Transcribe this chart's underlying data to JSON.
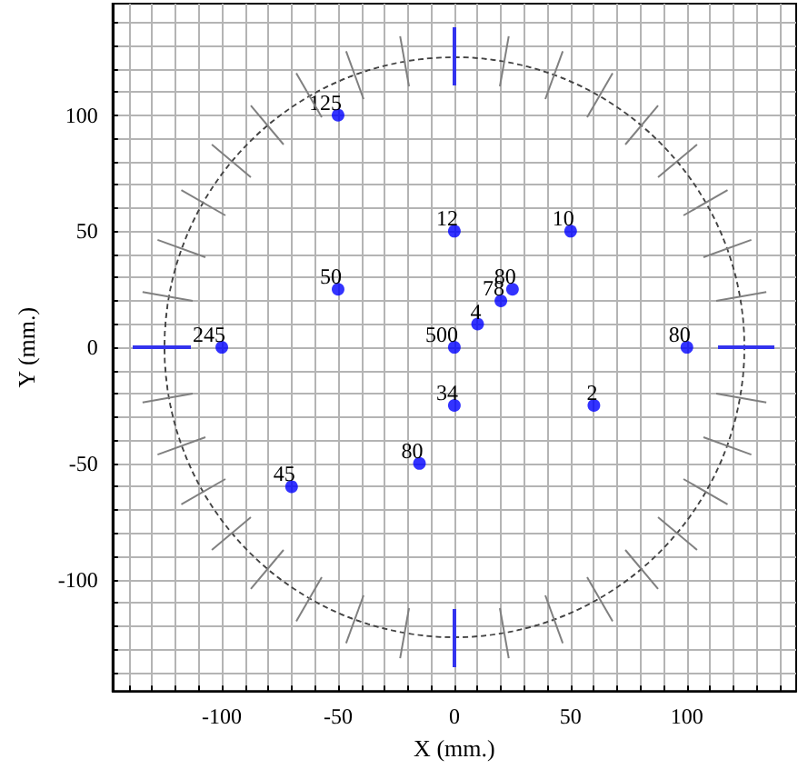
{
  "chart_data": {
    "type": "scatter",
    "xlabel": "X (mm.)",
    "ylabel": "Y (mm.)",
    "xlim": [
      -147,
      147
    ],
    "ylim": [
      -148,
      148
    ],
    "xticks": [
      {
        "value": -140,
        "label": null
      },
      {
        "value": -130,
        "label": null
      },
      {
        "value": -120,
        "label": null
      },
      {
        "value": -110,
        "label": null
      },
      -100,
      {
        "value": -90,
        "label": null
      },
      {
        "value": -80,
        "label": null
      },
      {
        "value": -70,
        "label": null
      },
      {
        "value": -60,
        "label": null
      },
      -50,
      {
        "value": -40,
        "label": null
      },
      {
        "value": -30,
        "label": null
      },
      {
        "value": -20,
        "label": null
      },
      {
        "value": -10,
        "label": null
      },
      0,
      {
        "value": 10,
        "label": null
      },
      {
        "value": 20,
        "label": null
      },
      {
        "value": 30,
        "label": null
      },
      {
        "value": 40,
        "label": null
      },
      50,
      {
        "value": 60,
        "label": null
      },
      {
        "value": 70,
        "label": null
      },
      {
        "value": 80,
        "label": null
      },
      {
        "value": 90,
        "label": null
      },
      100,
      {
        "value": 110,
        "label": null
      },
      {
        "value": 120,
        "label": null
      },
      {
        "value": 130,
        "label": null
      },
      {
        "value": 140,
        "label": null
      }
    ],
    "yticks": [
      {
        "value": -140,
        "label": null
      },
      {
        "value": -130,
        "label": null
      },
      {
        "value": -120,
        "label": null
      },
      {
        "value": -110,
        "label": null
      },
      -100,
      {
        "value": -90,
        "label": null
      },
      {
        "value": -80,
        "label": null
      },
      {
        "value": -70,
        "label": null
      },
      {
        "value": -60,
        "label": null
      },
      -50,
      {
        "value": -40,
        "label": null
      },
      {
        "value": -30,
        "label": null
      },
      {
        "value": -20,
        "label": null
      },
      {
        "value": -10,
        "label": null
      },
      0,
      {
        "value": 10,
        "label": null
      },
      {
        "value": 20,
        "label": null
      },
      {
        "value": 30,
        "label": null
      },
      {
        "value": 40,
        "label": null
      },
      50,
      {
        "value": 60,
        "label": null
      },
      {
        "value": 70,
        "label": null
      },
      {
        "value": 80,
        "label": null
      },
      {
        "value": 90,
        "label": null
      },
      100,
      {
        "value": 110,
        "label": null
      },
      {
        "value": 120,
        "label": null
      },
      {
        "value": 130,
        "label": null
      },
      {
        "value": 140,
        "label": null
      }
    ],
    "grid": true,
    "series": [
      {
        "color": "#0000ff",
        "marker": "circle",
        "x": [
          -50,
          0,
          50,
          -50,
          25,
          20,
          10,
          0,
          -100,
          100,
          0,
          60,
          -15,
          -70
        ],
        "values": [
          100,
          50,
          50,
          25,
          25,
          20,
          10,
          0,
          0,
          0,
          -25,
          -25,
          -50,
          -60
        ]
      }
    ],
    "annotations": [
      {
        "text": "125",
        "x": -50,
        "y": 100
      },
      {
        "text": "12",
        "x": 0,
        "y": 50
      },
      {
        "text": "10",
        "x": 50,
        "y": 50
      },
      {
        "text": "50",
        "x": -50,
        "y": 25
      },
      {
        "text": "80",
        "x": 25,
        "y": 25
      },
      {
        "text": "78",
        "x": 20,
        "y": 20
      },
      {
        "text": "4",
        "x": 10,
        "y": 10
      },
      {
        "text": "500",
        "x": 0,
        "y": 0
      },
      {
        "text": "245",
        "x": -100,
        "y": 0
      },
      {
        "text": "80",
        "x": 100,
        "y": 0
      },
      {
        "text": "34",
        "x": 0,
        "y": -25
      },
      {
        "text": "2",
        "x": 60,
        "y": -25
      },
      {
        "text": "80",
        "x": -15,
        "y": -50
      },
      {
        "text": "45",
        "x": -70,
        "y": -60
      }
    ]
  }
}
